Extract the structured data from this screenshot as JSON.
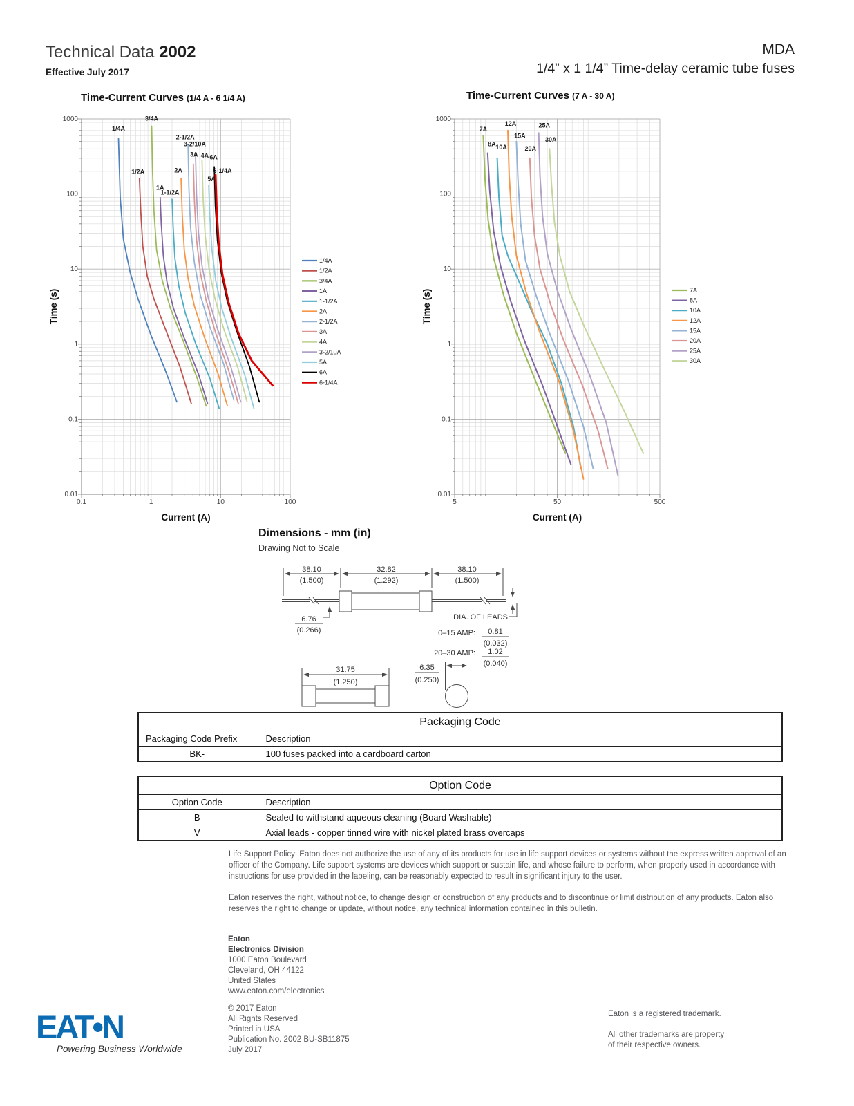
{
  "header": {
    "doc_type": "Technical Data",
    "doc_number": "2002",
    "effective": "Effective July 2017",
    "product": "MDA",
    "product_subtitle": "1/4” x 1 1/4” Time-delay ceramic tube fuses"
  },
  "colors": {
    "brand_blue": "#0B6BB3"
  },
  "chart_data": [
    {
      "type": "line",
      "title": "Time-Current Curves",
      "title_range": "(1/4 A - 6 1/4 A)",
      "xlabel": "Current (A)",
      "ylabel": "Time (s)",
      "xscale": "log",
      "yscale": "log",
      "xlim": [
        0.1,
        100
      ],
      "ylim": [
        0.01,
        1000
      ],
      "x_ticks": [
        "0.1",
        "1",
        "10",
        "100"
      ],
      "y_ticks": [
        "1000",
        "100",
        "10",
        "1",
        "0.1",
        "0.01"
      ],
      "legend_position": "right",
      "grid": true,
      "series": [
        {
          "name": "1/4A",
          "color": "#4F81BD",
          "label_dx": 0,
          "label_dy": -11,
          "points": [
            [
              0.34,
              550
            ],
            [
              0.36,
              90
            ],
            [
              0.4,
              25
            ],
            [
              0.5,
              9
            ],
            [
              0.65,
              4
            ],
            [
              1.0,
              1.3
            ],
            [
              1.6,
              0.45
            ],
            [
              2.35,
              0.17
            ]
          ]
        },
        {
          "name": "1/2A",
          "color": "#C0504D",
          "label_dx": -2,
          "label_dy": -7,
          "points": [
            [
              0.68,
              160
            ],
            [
              0.71,
              60
            ],
            [
              0.76,
              20
            ],
            [
              0.88,
              8
            ],
            [
              1.1,
              4
            ],
            [
              1.6,
              1.6
            ],
            [
              2.6,
              0.5
            ],
            [
              3.8,
              0.16
            ]
          ]
        },
        {
          "name": "3/4A",
          "color": "#9BBB59",
          "label_dx": 0,
          "label_dy": -8,
          "points": [
            [
              1.02,
              800
            ],
            [
              1.05,
              200
            ],
            [
              1.1,
              60
            ],
            [
              1.2,
              18
            ],
            [
              1.45,
              7
            ],
            [
              1.9,
              3
            ],
            [
              2.9,
              1.1
            ],
            [
              4.6,
              0.35
            ],
            [
              6.2,
              0.15
            ]
          ]
        },
        {
          "name": "1A",
          "color": "#8064A2",
          "label_dx": 0,
          "label_dy": -11,
          "points": [
            [
              1.35,
              90
            ],
            [
              1.4,
              40
            ],
            [
              1.5,
              15
            ],
            [
              1.7,
              6.5
            ],
            [
              2.1,
              3
            ],
            [
              3.0,
              1.2
            ],
            [
              4.8,
              0.4
            ],
            [
              6.5,
              0.16
            ]
          ]
        },
        {
          "name": "1-1/2A",
          "color": "#4BACC6",
          "label_dx": -3,
          "label_dy": -7,
          "points": [
            [
              2.0,
              85
            ],
            [
              2.08,
              35
            ],
            [
              2.2,
              14
            ],
            [
              2.5,
              6
            ],
            [
              3.1,
              2.6
            ],
            [
              4.4,
              1.0
            ],
            [
              7.0,
              0.35
            ],
            [
              9.5,
              0.14
            ]
          ]
        },
        {
          "name": "2A",
          "color": "#F79646",
          "label_dx": -4,
          "label_dy": -9,
          "points": [
            [
              2.7,
              160
            ],
            [
              2.8,
              55
            ],
            [
              3.0,
              18
            ],
            [
              3.4,
              7.5
            ],
            [
              4.2,
              3.2
            ],
            [
              5.9,
              1.2
            ],
            [
              9.2,
              0.4
            ],
            [
              12.5,
              0.15
            ]
          ]
        },
        {
          "name": "2-1/2A",
          "color": "#95B3D7",
          "label_dx": -4,
          "label_dy": -8,
          "points": [
            [
              3.4,
              450
            ],
            [
              3.5,
              120
            ],
            [
              3.7,
              35
            ],
            [
              4.2,
              12
            ],
            [
              5.1,
              4.5
            ],
            [
              7.0,
              1.7
            ],
            [
              11,
              0.55
            ],
            [
              15.5,
              0.18
            ]
          ]
        },
        {
          "name": "3A",
          "color": "#D99694",
          "label_dx": 1,
          "label_dy": -11,
          "points": [
            [
              4.05,
              250
            ],
            [
              4.2,
              80
            ],
            [
              4.5,
              25
            ],
            [
              5.1,
              9
            ],
            [
              6.2,
              3.8
            ],
            [
              8.5,
              1.4
            ],
            [
              13,
              0.45
            ],
            [
              18,
              0.16
            ]
          ]
        },
        {
          "name": "4A",
          "color": "#C3D69B",
          "label_dx": 4,
          "label_dy": -4,
          "points": [
            [
              5.4,
              280
            ],
            [
              5.6,
              85
            ],
            [
              6.0,
              28
            ],
            [
              6.8,
              10
            ],
            [
              8.3,
              4
            ],
            [
              11.3,
              1.5
            ],
            [
              17.5,
              0.5
            ],
            [
              24,
              0.17
            ]
          ]
        },
        {
          "name": "3-2/10A",
          "color": "#B3A2C7",
          "label_dx": -1,
          "label_dy": -10,
          "points": [
            [
              4.35,
              350
            ],
            [
              4.5,
              100
            ],
            [
              4.8,
              30
            ],
            [
              5.4,
              11
            ],
            [
              6.6,
              4.2
            ],
            [
              9.0,
              1.6
            ],
            [
              14,
              0.5
            ],
            [
              19.5,
              0.17
            ]
          ]
        },
        {
          "name": "5A",
          "color": "#92CDDC",
          "label_dx": 4,
          "label_dy": -6,
          "points": [
            [
              6.75,
              130
            ],
            [
              7.0,
              50
            ],
            [
              7.5,
              18
            ],
            [
              8.5,
              7
            ],
            [
              10.4,
              3
            ],
            [
              14.2,
              1.2
            ],
            [
              22,
              0.4
            ],
            [
              30,
              0.14
            ]
          ]
        },
        {
          "name": "6A",
          "color": "#000000",
          "label_dx": -1,
          "label_dy": -11,
          "points": [
            [
              8.1,
              230
            ],
            [
              8.4,
              70
            ],
            [
              9.0,
              24
            ],
            [
              10.2,
              9
            ],
            [
              12.4,
              3.8
            ],
            [
              17,
              1.5
            ],
            [
              26,
              0.5
            ],
            [
              36,
              0.17
            ]
          ]
        },
        {
          "name": "6-1/4A",
          "color": "#D90000",
          "width": 2.8,
          "label_dx": 10,
          "label_dy": -3,
          "points": [
            [
              8.45,
              180
            ],
            [
              8.8,
              60
            ],
            [
              9.4,
              22
            ],
            [
              10.6,
              8.5
            ],
            [
              13,
              3.6
            ],
            [
              18,
              1.4
            ],
            [
              28,
              0.6
            ],
            [
              56,
              0.28
            ]
          ]
        }
      ]
    },
    {
      "type": "line",
      "title": "Time-Current Curves",
      "title_range": "(7 A - 30 A)",
      "xlabel": "Current (A)",
      "ylabel": "Time (s)",
      "xscale": "log",
      "yscale": "log",
      "xlim": [
        5,
        500
      ],
      "ylim": [
        0.01,
        1000
      ],
      "x_ticks": [
        "5",
        "50",
        "500"
      ],
      "y_ticks": [
        "1000",
        "100",
        "10",
        "1",
        "0.1",
        "0.01"
      ],
      "legend_position": "right",
      "grid": true,
      "series": [
        {
          "name": "7A",
          "color": "#9BBB59",
          "label_dx": 0,
          "label_dy": -6,
          "points": [
            [
              9.5,
              600
            ],
            [
              9.9,
              150
            ],
            [
              10.6,
              45
            ],
            [
              12,
              14
            ],
            [
              15,
              4.5
            ],
            [
              20,
              1.4
            ],
            [
              30,
              0.35
            ],
            [
              45,
              0.09
            ],
            [
              60,
              0.035
            ]
          ]
        },
        {
          "name": "8A",
          "color": "#8064A2",
          "label_dx": 6,
          "label_dy": -10,
          "points": [
            [
              10.5,
              350
            ],
            [
              11,
              110
            ],
            [
              12,
              32
            ],
            [
              14,
              11
            ],
            [
              17.5,
              3.8
            ],
            [
              24,
              1.1
            ],
            [
              36,
              0.28
            ],
            [
              52,
              0.07
            ],
            [
              68,
              0.025
            ]
          ]
        },
        {
          "name": "10A",
          "color": "#4BACC6",
          "label_dx": 6,
          "label_dy": -13,
          "points": [
            [
              13,
              300
            ],
            [
              13.5,
              90
            ],
            [
              14.5,
              28
            ],
            [
              16.5,
              15
            ],
            [
              21,
              7
            ],
            [
              28,
              2.8
            ],
            [
              40,
              1
            ],
            [
              55,
              0.3
            ],
            [
              72,
              0.08
            ],
            [
              85,
              0.022
            ]
          ]
        },
        {
          "name": "12A",
          "color": "#F79646",
          "label_dx": 4,
          "label_dy": -7,
          "points": [
            [
              16.5,
              700
            ],
            [
              17,
              180
            ],
            [
              18,
              50
            ],
            [
              20,
              15
            ],
            [
              25,
              4.8
            ],
            [
              34,
              1.4
            ],
            [
              52,
              0.32
            ],
            [
              72,
              0.07
            ],
            [
              90,
              0.016
            ]
          ]
        },
        {
          "name": "15A",
          "color": "#95B3D7",
          "label_dx": 5,
          "label_dy": -5,
          "points": [
            [
              20,
              500
            ],
            [
              20.8,
              140
            ],
            [
              22,
              40
            ],
            [
              24.5,
              13
            ],
            [
              31,
              4.5
            ],
            [
              42,
              1.4
            ],
            [
              64,
              0.33
            ],
            [
              90,
              0.08
            ],
            [
              112,
              0.022
            ]
          ]
        },
        {
          "name": "20A",
          "color": "#D99694",
          "label_dx": 1,
          "label_dy": -11,
          "points": [
            [
              27,
              300
            ],
            [
              28,
              90
            ],
            [
              30,
              28
            ],
            [
              34,
              10
            ],
            [
              43,
              3.4
            ],
            [
              58,
              1.1
            ],
            [
              88,
              0.28
            ],
            [
              125,
              0.07
            ],
            [
              155,
              0.022
            ]
          ]
        },
        {
          "name": "25A",
          "color": "#B3A2C7",
          "label_dx": 8,
          "label_dy": -8,
          "points": [
            [
              33,
              650
            ],
            [
              34,
              170
            ],
            [
              36,
              50
            ],
            [
              40,
              16
            ],
            [
              50,
              5.2
            ],
            [
              68,
              1.6
            ],
            [
              104,
              0.38
            ],
            [
              150,
              0.09
            ],
            [
              195,
              0.018
            ]
          ]
        },
        {
          "name": "30A",
          "color": "#C3D69B",
          "label_dx": 2,
          "label_dy": -10,
          "points": [
            [
              42,
              400
            ],
            [
              44,
              130
            ],
            [
              47,
              42
            ],
            [
              53,
              15
            ],
            [
              66,
              5
            ],
            [
              92,
              1.7
            ],
            [
              145,
              0.45
            ],
            [
              230,
              0.12
            ],
            [
              345,
              0.035
            ]
          ]
        }
      ]
    }
  ],
  "dimensions": {
    "title": "Dimensions - mm (in)",
    "note": "Drawing Not to Scale",
    "labels": {
      "d1_mm": "38.10",
      "d1_in": "(1.500)",
      "d2_mm": "32.82",
      "d2_in": "(1.292)",
      "d3_mm": "38.10",
      "d3_in": "(1.500)",
      "cap_mm": "6.76",
      "cap_in": "(0.266)",
      "dia_leads": "DIA. OF LEADS",
      "amp1": "0–15 AMP:",
      "amp1_mm": "0.81",
      "amp1_in": "(0.032)",
      "amp2": "20–30 AMP:",
      "amp2_mm": "1.02",
      "amp2_in": "(0.040)",
      "body_mm": "31.75",
      "body_in": "(1.250)",
      "lead_dia_mm": "6.35",
      "lead_dia_in": "(0.250)"
    }
  },
  "tables": {
    "packaging": {
      "title": "Packaging Code",
      "headers": [
        "Packaging Code Prefix",
        "Description"
      ],
      "rows": [
        [
          "BK-",
          "100 fuses packed into a cardboard carton"
        ]
      ]
    },
    "option": {
      "title": "Option Code",
      "headers": [
        "Option Code",
        "Description"
      ],
      "rows": [
        [
          "B",
          "Sealed to withstand aqueous cleaning (Board Washable)"
        ],
        [
          "V",
          "Axial leads - copper tinned wire with nickel plated brass overcaps"
        ]
      ]
    }
  },
  "legal": {
    "p1": "Life Support Policy: Eaton does not authorize the use of any of its products for use in life support devices or systems without the express written approval of an officer of the Company. Life support systems are devices which support or sustain life, and whose failure to perform, when properly used in accordance with instructions for use provided in the labeling, can be reasonably expected to result in significant injury to the user.",
    "p2": "Eaton reserves the right, without notice, to change design or construction of any products and to discontinue or limit distribution of any products. Eaton also reserves the right to change or update, without notice, any technical information contained in this bulletin."
  },
  "footer": {
    "company": "Eaton",
    "division": "Electronics Division",
    "address1": "1000 Eaton Boulevard",
    "address2": "Cleveland, OH 44122",
    "address3": "United States",
    "website": "www.eaton.com/electronics",
    "copyright": "© 2017 Eaton",
    "rights": "All Rights Reserved",
    "printed": "Printed in USA",
    "publication": "Publication No. 2002 BU-SB11875",
    "date": "July 2017",
    "trademark1": "Eaton is a registered trademark.",
    "trademark2": "All other trademarks are property",
    "trademark3": "of their respective owners.",
    "logo_text": "EAT•N",
    "logo_tagline": "Powering Business Worldwide"
  }
}
